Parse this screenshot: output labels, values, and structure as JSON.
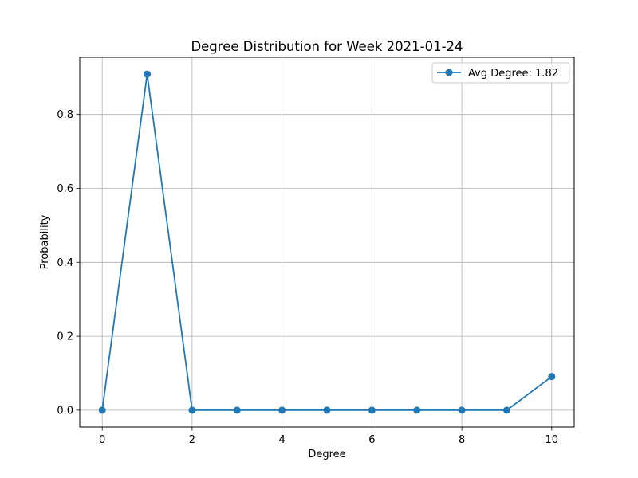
{
  "chart_data": {
    "type": "line",
    "title": "Degree Distribution for Week 2021-01-24",
    "xlabel": "Degree",
    "ylabel": "Probability",
    "x": [
      0,
      1,
      2,
      3,
      4,
      5,
      6,
      7,
      8,
      9,
      10
    ],
    "series": [
      {
        "name": "Avg Degree: 1.82",
        "values": [
          0.0,
          0.909,
          0.0,
          0.0,
          0.0,
          0.0,
          0.0,
          0.0,
          0.0,
          0.0,
          0.091
        ],
        "color": "#1f77b4",
        "marker": "circle"
      }
    ],
    "xlim": [
      -0.5,
      10.5
    ],
    "ylim": [
      -0.0455,
      0.9545
    ],
    "xticks": [
      0,
      2,
      4,
      6,
      8,
      10
    ],
    "xtick_labels": [
      "0",
      "2",
      "4",
      "6",
      "8",
      "10"
    ],
    "yticks": [
      0.0,
      0.2,
      0.4,
      0.6,
      0.8
    ],
    "ytick_labels": [
      "0.0",
      "0.2",
      "0.4",
      "0.6",
      "0.8"
    ],
    "grid": true,
    "legend_position": "top-right"
  }
}
